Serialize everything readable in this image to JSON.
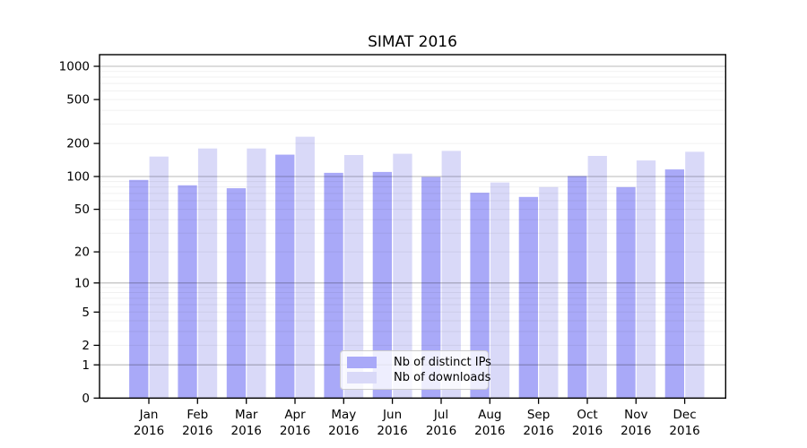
{
  "title": "SIMAT 2016",
  "legend": {
    "items": [
      {
        "label": "Nb of distinct IPs",
        "color": "#a9a9f8"
      },
      {
        "label": "Nb of downloads",
        "color": "#d9d9f8"
      }
    ]
  },
  "chart_data": {
    "type": "bar",
    "title": "SIMAT 2016",
    "categories": [
      "Jan 2016",
      "Feb 2016",
      "Mar 2016",
      "Apr 2016",
      "May 2016",
      "Jun 2016",
      "Jul 2016",
      "Aug 2016",
      "Sep 2016",
      "Oct 2016",
      "Nov 2016",
      "Dec 2016"
    ],
    "series": [
      {
        "name": "Nb of distinct IPs",
        "color": "#a9a9f8",
        "values": [
          93,
          83,
          78,
          158,
          108,
          110,
          99,
          71,
          65,
          101,
          80,
          116
        ]
      },
      {
        "name": "Nb of downloads",
        "color": "#d9d9f8",
        "values": [
          152,
          180,
          180,
          230,
          157,
          161,
          171,
          88,
          80,
          154,
          140,
          168
        ]
      }
    ],
    "yscale": "log(1+x)",
    "y_ticks": [
      0,
      1,
      2,
      5,
      10,
      20,
      50,
      100,
      200,
      500,
      1000
    ],
    "y_tick_labels": [
      "0",
      "1",
      "2",
      "5",
      "10",
      "20",
      "50",
      "100",
      "200",
      "500",
      "1000"
    ],
    "ylim": [
      0,
      1280
    ],
    "xlabel": "",
    "ylabel": "",
    "grid": true,
    "legend_position": "lower center"
  }
}
